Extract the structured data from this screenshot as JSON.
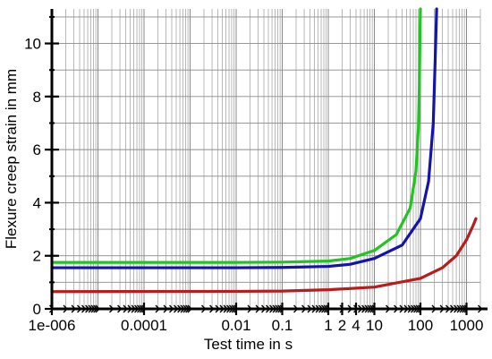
{
  "chart_data": {
    "type": "line",
    "xscale": "log",
    "xlim": [
      1e-06,
      2000
    ],
    "ylim": [
      0,
      11.3
    ],
    "grid": true,
    "xlabel": "Test time in s",
    "ylabel": "Flexure creep strain in mm",
    "x_ticks": [
      {
        "value": 1e-06,
        "label": "1e-006"
      },
      {
        "value": 0.0001,
        "label": "0.0001"
      },
      {
        "value": 0.01,
        "label": "0.01"
      },
      {
        "value": 0.1,
        "label": "0.1"
      },
      {
        "value": 1,
        "label": "1"
      },
      {
        "value": 2,
        "label": "2"
      },
      {
        "value": 4,
        "label": "4"
      },
      {
        "value": 10,
        "label": "10"
      },
      {
        "value": 100,
        "label": "100"
      },
      {
        "value": 1000,
        "label": "1000"
      }
    ],
    "y_ticks": [
      {
        "value": 0,
        "label": "0"
      },
      {
        "value": 2,
        "label": "2"
      },
      {
        "value": 4,
        "label": "4"
      },
      {
        "value": 6,
        "label": "6"
      },
      {
        "value": 8,
        "label": "8"
      },
      {
        "value": 10,
        "label": "10"
      }
    ],
    "series": [
      {
        "color": "#22c422",
        "points": [
          [
            1e-06,
            1.75
          ],
          [
            0.01,
            1.75
          ],
          [
            0.1,
            1.76
          ],
          [
            1,
            1.8
          ],
          [
            3,
            1.9
          ],
          [
            10,
            2.2
          ],
          [
            30,
            2.8
          ],
          [
            60,
            3.8
          ],
          [
            80,
            5.2
          ],
          [
            90,
            6.8
          ],
          [
            95,
            8.5
          ],
          [
            98,
            10.5
          ],
          [
            100,
            11.3
          ]
        ]
      },
      {
        "color": "#1414aa",
        "points": [
          [
            1e-06,
            1.55
          ],
          [
            0.01,
            1.55
          ],
          [
            0.1,
            1.56
          ],
          [
            1,
            1.6
          ],
          [
            3,
            1.68
          ],
          [
            10,
            1.9
          ],
          [
            40,
            2.4
          ],
          [
            100,
            3.4
          ],
          [
            150,
            4.8
          ],
          [
            190,
            7.0
          ],
          [
            210,
            9.5
          ],
          [
            225,
            11.3
          ]
        ]
      },
      {
        "color": "#b81c1c",
        "points": [
          [
            1e-06,
            0.65
          ],
          [
            0.01,
            0.66
          ],
          [
            0.1,
            0.67
          ],
          [
            1,
            0.72
          ],
          [
            10,
            0.82
          ],
          [
            100,
            1.15
          ],
          [
            300,
            1.55
          ],
          [
            600,
            2.0
          ],
          [
            1000,
            2.6
          ],
          [
            1400,
            3.15
          ],
          [
            1600,
            3.4
          ]
        ]
      }
    ]
  }
}
